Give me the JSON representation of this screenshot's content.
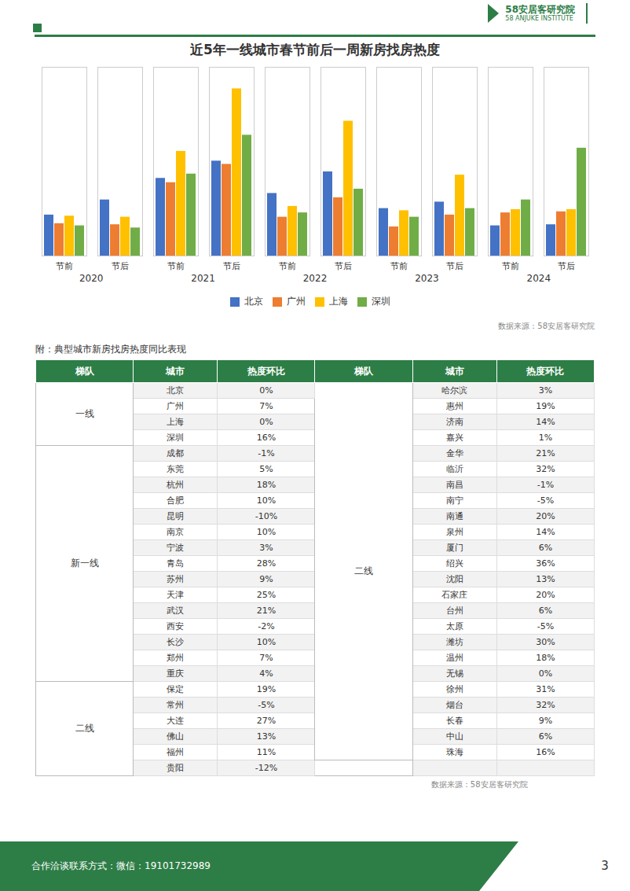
{
  "chart_data": [
    {
      "type": "bar",
      "title": "近5年一线城市春节前后一周新房找房热度",
      "groups": [
        "2020",
        "2021",
        "2022",
        "2023",
        "2024"
      ],
      "categories": [
        "节前",
        "节后",
        "节前",
        "节后",
        "节前",
        "节后",
        "节前",
        "节后",
        "节前",
        "节后"
      ],
      "series": [
        {
          "name": "北京",
          "color": "#4472C4",
          "values": [
            38,
            52,
            72,
            88,
            58,
            78,
            44,
            50,
            28,
            29
          ]
        },
        {
          "name": "广州",
          "color": "#ED7D31",
          "values": [
            30,
            29,
            68,
            85,
            36,
            54,
            27,
            38,
            40,
            41
          ]
        },
        {
          "name": "上海",
          "color": "#FFC000",
          "values": [
            37,
            36,
            97,
            155,
            46,
            125,
            42,
            75,
            43,
            43
          ]
        },
        {
          "name": "深圳",
          "color": "#70AD47",
          "values": [
            28,
            26,
            76,
            112,
            40,
            62,
            36,
            44,
            52,
            100
          ]
        }
      ],
      "ylim": [
        0,
        175
      ],
      "yticks": [],
      "tick_labels": "x",
      "grid": false,
      "legend": "bottom",
      "annotations": [
        "数据来源：58安居客研究院"
      ]
    },
    {
      "type": "table",
      "title": "附：典型城市新房找房热度同比表现",
      "color": "#2D7D46",
      "columns": [
        "梯队",
        "城市",
        "热度环比",
        "梯队",
        "城市",
        "热度环比"
      ],
      "left_tiers": [
        {
          "label": "一线",
          "rows": 4
        },
        {
          "label": "新一线",
          "rows": 15
        },
        {
          "label": "二线",
          "rows": 6
        }
      ],
      "left_rows": [
        [
          "北京",
          "0%"
        ],
        [
          "广州",
          "7%"
        ],
        [
          "上海",
          "0%"
        ],
        [
          "深圳",
          "16%"
        ],
        [
          "成都",
          "-1%"
        ],
        [
          "东莞",
          "5%"
        ],
        [
          "杭州",
          "18%"
        ],
        [
          "合肥",
          "10%"
        ],
        [
          "昆明",
          "-10%"
        ],
        [
          "南京",
          "10%"
        ],
        [
          "宁波",
          "3%"
        ],
        [
          "青岛",
          "28%"
        ],
        [
          "苏州",
          "9%"
        ],
        [
          "天津",
          "25%"
        ],
        [
          "武汉",
          "21%"
        ],
        [
          "西安",
          "-2%"
        ],
        [
          "长沙",
          "10%"
        ],
        [
          "郑州",
          "7%"
        ],
        [
          "重庆",
          "4%"
        ],
        [
          "保定",
          "19%"
        ],
        [
          "常州",
          "-5%"
        ],
        [
          "大连",
          "27%"
        ],
        [
          "佛山",
          "13%"
        ],
        [
          "福州",
          "11%"
        ],
        [
          "贵阳",
          "-12%"
        ]
      ],
      "right_tiers": [
        {
          "label": "二线",
          "rows": 24
        }
      ],
      "right_rows": [
        [
          "哈尔滨",
          "3%"
        ],
        [
          "惠州",
          "19%"
        ],
        [
          "济南",
          "14%"
        ],
        [
          "嘉兴",
          "1%"
        ],
        [
          "金华",
          "21%"
        ],
        [
          "临沂",
          "32%"
        ],
        [
          "南昌",
          "-1%"
        ],
        [
          "南宁",
          "-5%"
        ],
        [
          "南通",
          "20%"
        ],
        [
          "泉州",
          "14%"
        ],
        [
          "厦门",
          "6%"
        ],
        [
          "绍兴",
          "36%"
        ],
        [
          "沈阳",
          "13%"
        ],
        [
          "石家庄",
          "20%"
        ],
        [
          "台州",
          "6%"
        ],
        [
          "太原",
          "-5%"
        ],
        [
          "潍坊",
          "30%"
        ],
        [
          "温州",
          "18%"
        ],
        [
          "无锡",
          "0%"
        ],
        [
          "徐州",
          "31%"
        ],
        [
          "烟台",
          "32%"
        ],
        [
          "长春",
          "9%"
        ],
        [
          "中山",
          "6%"
        ],
        [
          "珠海",
          "16%"
        ]
      ],
      "annotations": [
        "数据来源：58安居客研究院"
      ]
    }
  ],
  "page": {
    "color": "#2D7D46",
    "logo": [
      "58安居客研究院",
      "58 ANJUKE INSTITUTE"
    ],
    "footer": "合作洽谈联系方式：微信：19101732989",
    "page_number": 3
  }
}
